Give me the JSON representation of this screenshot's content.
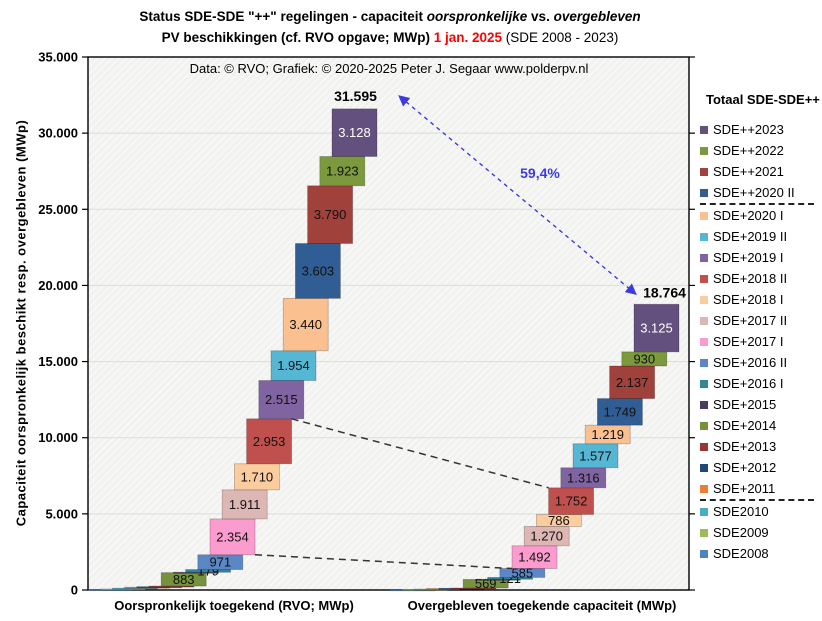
{
  "title": {
    "line1_part1": "Status SDE-SDE \"++\" regelingen - capaciteit ",
    "line1_italic1": "oorspronkelijke",
    "line1_part2": " vs. ",
    "line1_italic2": "overgebleven",
    "line2_prefix": "PV beschikkingen (cf. RVO opgave; MWp) ",
    "line2_date": "1 jan. 2025",
    "line2_suffix": " (SDE 2008 - 2023)"
  },
  "attribution": "Data: © RVO;  Grafiek:  © 2020-2025 Peter J. Segaar www.polderpv.nl",
  "axes": {
    "y_title": "Capaciteit oorspronkelijk beschikt resp. overgebleven (MWp)",
    "x_label_left": "Oorspronkelijk toegekend (RVO; MWp)",
    "x_label_right": "Overgebleven toegekende capaciteit (MWp)",
    "y_ticks": [
      "0",
      "5.000",
      "10.000",
      "15.000",
      "20.000",
      "25.000",
      "30.000",
      "35.000"
    ],
    "y_max": 35000
  },
  "legend": {
    "title": "Totaal SDE-SDE++",
    "separators_after": [
      "SDE++2020 II",
      "SDE+2011"
    ]
  },
  "annotations": {
    "percent_label": "59,4%",
    "total_left_label": "31.595",
    "total_right_label": "18.764"
  },
  "chart_data": {
    "type": "bar",
    "subtype": "offset-stacked-waterfall-comparison",
    "note": "Two stacked staircases; unlabeled tiny segment values (SDE2008-SDE+2013, SDE+2015) estimated from pixel heights.",
    "columns": [
      "Oorspronkelijk toegekend (RVO; MWp)",
      "Overgebleven toegekende capaciteit (MWp)"
    ],
    "totals": {
      "left": 31595,
      "right": 18764,
      "remaining_pct": "59,4%"
    },
    "categories": [
      {
        "name": "SDE2008",
        "color": "#4F81BD",
        "left": 22,
        "right": 10,
        "label_left": null,
        "label_right": null
      },
      {
        "name": "SDE2009",
        "color": "#9BBB59",
        "left": 45,
        "right": 25,
        "label_left": null,
        "label_right": null
      },
      {
        "name": "SDE2010",
        "color": "#4BACC6",
        "left": 55,
        "right": 30,
        "label_left": null,
        "label_right": null
      },
      {
        "name": "SDE+2011",
        "color": "#ED7D31",
        "left": 60,
        "right": 30,
        "label_left": null,
        "label_right": null
      },
      {
        "name": "SDE+2012",
        "color": "#1F497D",
        "left": 35,
        "right": 15,
        "label_left": null,
        "label_right": null
      },
      {
        "name": "SDE+2013",
        "color": "#943735",
        "left": 40,
        "right": 16,
        "label_left": null,
        "label_right": null
      },
      {
        "name": "SDE+2014",
        "color": "#76923C",
        "left": 883,
        "right": 569,
        "label_left": "883",
        "label_right": "569"
      },
      {
        "name": "SDE+2015",
        "color": "#4A3B63",
        "left": 24,
        "right": 10,
        "label_left": null,
        "label_right": null
      },
      {
        "name": "SDE+2016 I",
        "color": "#31859C",
        "left": 179,
        "right": 121,
        "label_left": "179",
        "label_right": "121"
      },
      {
        "name": "SDE+2016 II",
        "color": "#5C87C6",
        "left": 971,
        "right": 585,
        "label_left": "971",
        "label_right": "585"
      },
      {
        "name": "SDE+2017 I",
        "color": "#FC9CCE",
        "left": 2354,
        "right": 1492,
        "label_left": "2.354",
        "label_right": "1.492"
      },
      {
        "name": "SDE+2017 II",
        "color": "#DDB7B4",
        "left": 1911,
        "right": 1270,
        "label_left": "1.911",
        "label_right": "1.270"
      },
      {
        "name": "SDE+2018 I",
        "color": "#FBCC9E",
        "left": 1710,
        "right": 786,
        "label_left": "1.710",
        "label_right": "786"
      },
      {
        "name": "SDE+2018 II",
        "color": "#C0504D",
        "left": 2953,
        "right": 1752,
        "label_left": "2.953",
        "label_right": "1.752"
      },
      {
        "name": "SDE+2019 I",
        "color": "#8064A2",
        "left": 2515,
        "right": 1316,
        "label_left": "2.515",
        "label_right": "1.316"
      },
      {
        "name": "SDE+2019 II",
        "color": "#55B7D4",
        "left": 1954,
        "right": 1577,
        "label_left": "1.954",
        "label_right": "1.577"
      },
      {
        "name": "SDE+2020 I",
        "color": "#FAC090",
        "left": 3440,
        "right": 1219,
        "label_left": "3.440",
        "label_right": "1.219"
      },
      {
        "name": "SDE++2020 II",
        "color": "#305E94",
        "left": 3603,
        "right": 1749,
        "label_left": "3.603",
        "label_right": "1.749"
      },
      {
        "name": "SDE++2021",
        "color": "#A0413C",
        "left": 3790,
        "right": 2137,
        "label_left": "3.790",
        "label_right": "2.137"
      },
      {
        "name": "SDE++2022",
        "color": "#7C9A3D",
        "left": 1923,
        "right": 930,
        "label_left": "1.923",
        "label_right": "930"
      },
      {
        "name": "SDE++2023",
        "color": "#63507F",
        "left": 3128,
        "right": 3125,
        "label_left": "3.128",
        "label_right": "3.125",
        "label_color": "#FFFFFF"
      }
    ],
    "connectors": [
      {
        "after": "SDE+2016 II",
        "corner": "upper"
      },
      {
        "after": "SDE+2018 II",
        "corner": "lower"
      }
    ]
  }
}
